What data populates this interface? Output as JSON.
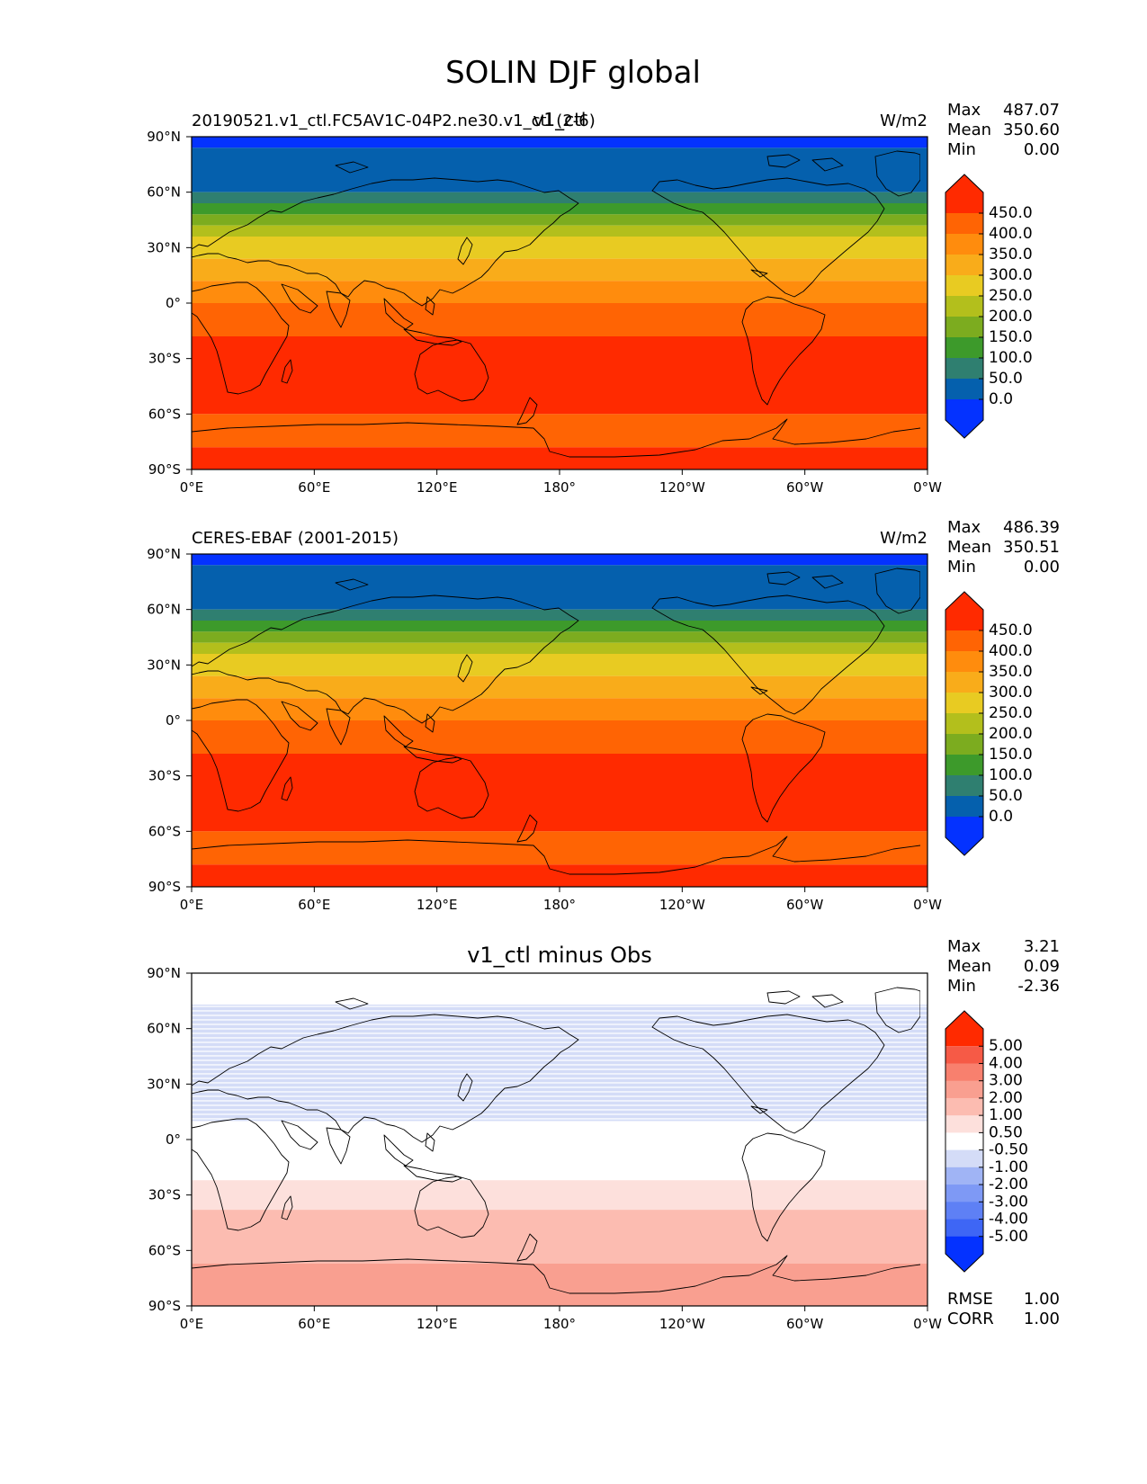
{
  "figure": {
    "title": "SOLIN DJF global"
  },
  "colors": {
    "sequential": [
      "#0432ff",
      "#0560ad",
      "#2f7f70",
      "#3d9a2b",
      "#7cac1f",
      "#b3bf1c",
      "#e8cb22",
      "#f9ac1a",
      "#ff8c0d",
      "#ff6404",
      "#ff2a00"
    ],
    "diverging": [
      "#0432ff",
      "#3e66f5",
      "#5e80f5",
      "#7e99f5",
      "#a0b4f5",
      "#d4dcf7",
      "#ffffff",
      "#fde0dc",
      "#fcbcb1",
      "#f99f90",
      "#f8806e",
      "#f65a46",
      "#ff2a00"
    ]
  },
  "axes": {
    "xticks": [
      "0°E",
      "60°E",
      "120°E",
      "180°",
      "120°W",
      "60°W",
      "0°W"
    ],
    "yticks": [
      "90°N",
      "60°N",
      "30°N",
      "0°",
      "30°S",
      "60°S",
      "90°S"
    ]
  },
  "chart_data": [
    {
      "type": "heatmap",
      "panel": "test",
      "title": "v1_ctl",
      "left_label": "20190521.v1_ctl.FC5AV1C-04P2.ne30.v1_ctl (2-6)",
      "units": "W/m2",
      "stats": [
        {
          "label": "Max",
          "value": "487.07"
        },
        {
          "label": "Mean",
          "value": "350.60"
        },
        {
          "label": "Min",
          "value": "0.00"
        }
      ],
      "colorbar_levels": [
        "450.0",
        "400.0",
        "350.0",
        "300.0",
        "250.0",
        "200.0",
        "150.0",
        "100.0",
        "50.0",
        "0.0"
      ],
      "xlim": [
        0,
        360
      ],
      "ylim": [
        -90,
        90
      ],
      "lat_bands": [
        {
          "lat": [
            84,
            90
          ],
          "color_index": 0
        },
        {
          "lat": [
            60,
            84
          ],
          "color_index": 1
        },
        {
          "lat": [
            54,
            60
          ],
          "color_index": 2
        },
        {
          "lat": [
            48,
            54
          ],
          "color_index": 3
        },
        {
          "lat": [
            42,
            48
          ],
          "color_index": 4
        },
        {
          "lat": [
            36,
            42
          ],
          "color_index": 5
        },
        {
          "lat": [
            24,
            36
          ],
          "color_index": 6
        },
        {
          "lat": [
            12,
            24
          ],
          "color_index": 7
        },
        {
          "lat": [
            0,
            12
          ],
          "color_index": 8
        },
        {
          "lat": [
            -18,
            0
          ],
          "color_index": 9
        },
        {
          "lat": [
            -60,
            -18
          ],
          "color_index": 10
        },
        {
          "lat": [
            -78,
            -60
          ],
          "color_index": 9
        },
        {
          "lat": [
            -90,
            -78
          ],
          "color_index": 10
        }
      ]
    },
    {
      "type": "heatmap",
      "panel": "reference",
      "title": "",
      "left_label": "CERES-EBAF (2001-2015)",
      "units": "W/m2",
      "stats": [
        {
          "label": "Max",
          "value": "486.39"
        },
        {
          "label": "Mean",
          "value": "350.51"
        },
        {
          "label": "Min",
          "value": "0.00"
        }
      ],
      "colorbar_levels": [
        "450.0",
        "400.0",
        "350.0",
        "300.0",
        "250.0",
        "200.0",
        "150.0",
        "100.0",
        "50.0",
        "0.0"
      ],
      "xlim": [
        0,
        360
      ],
      "ylim": [
        -90,
        90
      ],
      "lat_bands": [
        {
          "lat": [
            84,
            90
          ],
          "color_index": 0
        },
        {
          "lat": [
            60,
            84
          ],
          "color_index": 1
        },
        {
          "lat": [
            54,
            60
          ],
          "color_index": 2
        },
        {
          "lat": [
            48,
            54
          ],
          "color_index": 3
        },
        {
          "lat": [
            42,
            48
          ],
          "color_index": 4
        },
        {
          "lat": [
            36,
            42
          ],
          "color_index": 5
        },
        {
          "lat": [
            24,
            36
          ],
          "color_index": 6
        },
        {
          "lat": [
            12,
            24
          ],
          "color_index": 7
        },
        {
          "lat": [
            0,
            12
          ],
          "color_index": 8
        },
        {
          "lat": [
            -18,
            0
          ],
          "color_index": 9
        },
        {
          "lat": [
            -60,
            -18
          ],
          "color_index": 10
        },
        {
          "lat": [
            -78,
            -60
          ],
          "color_index": 9
        },
        {
          "lat": [
            -90,
            -78
          ],
          "color_index": 10
        }
      ]
    },
    {
      "type": "heatmap",
      "panel": "difference",
      "title": "v1_ctl minus Obs",
      "left_label": "",
      "units": "",
      "stats": [
        {
          "label": "Max",
          "value": "3.21"
        },
        {
          "label": "Mean",
          "value": "0.09"
        },
        {
          "label": "Min",
          "value": "-2.36"
        }
      ],
      "colorbar_levels": [
        "5.00",
        "4.00",
        "3.00",
        "2.00",
        "1.00",
        "0.50",
        "-0.50",
        "-1.00",
        "-2.00",
        "-3.00",
        "-4.00",
        "-5.00"
      ],
      "extra_stats": [
        {
          "label": "RMSE",
          "value": "1.00"
        },
        {
          "label": "CORR",
          "value": "1.00"
        }
      ],
      "xlim": [
        0,
        360
      ],
      "ylim": [
        -90,
        90
      ],
      "lat_bands": [
        {
          "lat": [
            73,
            90
          ],
          "color_index": 6
        },
        {
          "lat": [
            10,
            73
          ],
          "color_index": 5,
          "striped": true
        },
        {
          "lat": [
            -22,
            10
          ],
          "color_index": 6
        },
        {
          "lat": [
            -38,
            -22
          ],
          "color_index": 7
        },
        {
          "lat": [
            -67,
            -38
          ],
          "color_index": 8
        },
        {
          "lat": [
            -90,
            -67
          ],
          "color_index": 9
        }
      ]
    }
  ]
}
